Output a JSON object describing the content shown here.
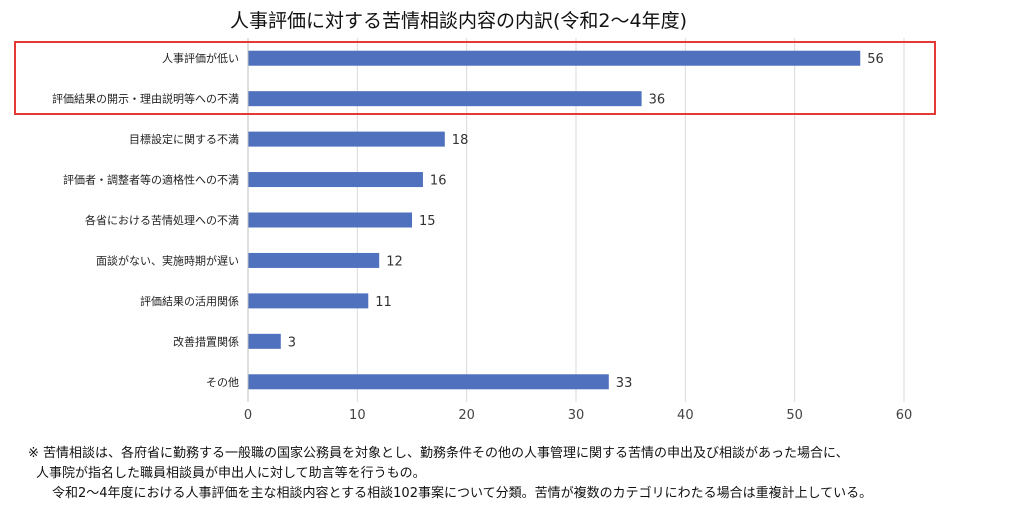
{
  "chart_data": {
    "type": "bar",
    "orientation": "horizontal",
    "title": "人事評価に対する苦情相談内容の内訳(令和2～4年度)",
    "categories": [
      "人事評価が低い",
      "評価結果の開示・理由説明等への不満",
      "目標設定に関する不満",
      "評価者・調整者等の適格性への不満",
      "各省における苦情処理への不満",
      "面談がない、実施時期が遅い",
      "評価結果の活用関係",
      "改善措置関係",
      "その他"
    ],
    "values": [
      56,
      36,
      18,
      16,
      15,
      12,
      11,
      3,
      33
    ],
    "xlim": [
      0,
      60
    ],
    "xticks": [
      "0",
      "10",
      "20",
      "30",
      "40",
      "50",
      "60"
    ],
    "grid": true,
    "highlighted_categories": [
      "人事評価が低い",
      "評価結果の開示・理由説明等への不満"
    ],
    "bar_color": "#4f71be",
    "highlight_color": "#e53935"
  },
  "notes": {
    "line1": "※  苦情相談は、各府省に勤務する一般職の国家公務員を対象とし、勤務条件その他の人事管理に関する苦情の申出及び相談があった場合に、",
    "line2": "人事院が指名した職員相談員が申出人に対して助言等を行うもの。",
    "line3": "令和2～4年度における人事評価を主な相談内容とする相談102事案について分類。苦情が複数のカテゴリにわたる場合は重複計上している。"
  }
}
